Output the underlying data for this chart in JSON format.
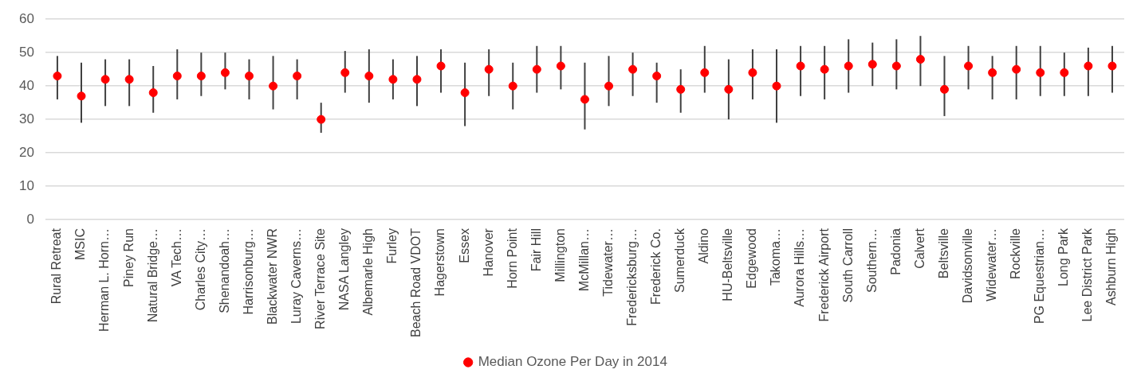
{
  "chart_data": {
    "type": "scatter",
    "categories": [
      "Rural Retreat",
      "MSIC",
      "Herman L. Horn…",
      "Piney Run",
      "Natural Bridge…",
      "VA Tech…",
      "Charles City…",
      "Shenandoah…",
      "Harrisonburg…",
      "Blackwater NWR",
      "Luray Caverns…",
      "River Terrace Site",
      "NASA Langley",
      "Albemarle High",
      "Furley",
      "Beach Road VDOT",
      "Hagerstown",
      "Essex",
      "Hanover",
      "Horn Point",
      "Fair Hill",
      "Millington",
      "McMillan…",
      "Tidewater…",
      "Fredericksburg…",
      "Frederick Co.",
      "Sumerduck",
      "Aldino",
      "HU-Beltsville",
      "Edgewood",
      "Takoma…",
      "Aurora Hills…",
      "Frederick Airport",
      "South Carroll",
      "Southern…",
      "Padonia",
      "Calvert",
      "Beltsville",
      "Davidsonville",
      "Widewater…",
      "Rockville",
      "PG Equestrian…",
      "Long Park",
      "Lee District Park",
      "Ashburn High"
    ],
    "series": [
      {
        "name": "Median Ozone Per Day in 2014",
        "color": "#ff0000",
        "values": [
          43,
          37,
          42,
          42,
          38,
          43,
          43,
          44,
          43,
          40,
          43,
          30,
          44,
          43,
          42,
          42,
          46,
          38,
          45,
          40,
          45,
          46,
          36,
          40,
          45,
          43,
          39,
          44,
          39,
          44,
          40,
          46,
          45,
          46,
          46.5,
          46,
          48,
          39,
          46,
          44,
          45,
          44,
          44,
          46,
          46
        ],
        "errors": [
          [
            36,
            49
          ],
          [
            29,
            47
          ],
          [
            34,
            48
          ],
          [
            34,
            48
          ],
          [
            32,
            46
          ],
          [
            36,
            51
          ],
          [
            37,
            50
          ],
          [
            39,
            50
          ],
          [
            36,
            48
          ],
          [
            33,
            49
          ],
          [
            36,
            48
          ],
          [
            26,
            35
          ],
          [
            38,
            50.5
          ],
          [
            35,
            51
          ],
          [
            36,
            48
          ],
          [
            34,
            49
          ],
          [
            38,
            51
          ],
          [
            28,
            47
          ],
          [
            37,
            51
          ],
          [
            33,
            47
          ],
          [
            38,
            52
          ],
          [
            39,
            52
          ],
          [
            27,
            47
          ],
          [
            34,
            49
          ],
          [
            37,
            50
          ],
          [
            35,
            47
          ],
          [
            32,
            45
          ],
          [
            38,
            52
          ],
          [
            30,
            48
          ],
          [
            36,
            51
          ],
          [
            29,
            51
          ],
          [
            37,
            52
          ],
          [
            36,
            52
          ],
          [
            38,
            54
          ],
          [
            40,
            53
          ],
          [
            39,
            54
          ],
          [
            40,
            55
          ],
          [
            31,
            49
          ],
          [
            39,
            52
          ],
          [
            36,
            49
          ],
          [
            36,
            52
          ],
          [
            37,
            52
          ],
          [
            37,
            50
          ],
          [
            37,
            51.5
          ],
          [
            38,
            52
          ]
        ]
      }
    ],
    "ylim": [
      0,
      60
    ],
    "yticks": [
      0,
      10,
      20,
      30,
      40,
      50,
      60
    ],
    "grid": "y",
    "legend": "bottom",
    "marker": "circle"
  }
}
